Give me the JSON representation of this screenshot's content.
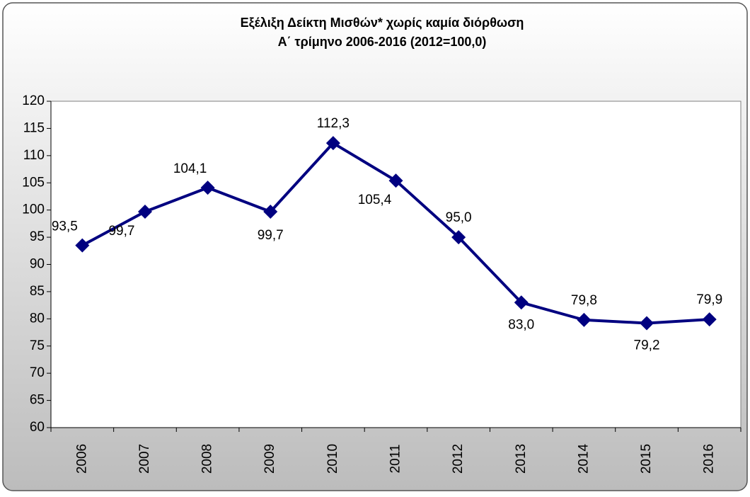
{
  "chart_data": {
    "type": "line",
    "title": "Εξέλιξη Δείκτη Μισθών* χωρίς καμία διόρθωση",
    "subtitle": "Α΄ τρίμηνο 2006-2016 (2012=100,0)",
    "categories": [
      "2006",
      "2007",
      "2008",
      "2009",
      "2010",
      "2011",
      "2012",
      "2013",
      "2014",
      "2015",
      "2016"
    ],
    "values": [
      93.5,
      99.7,
      104.1,
      99.7,
      112.3,
      105.4,
      95.0,
      83.0,
      79.8,
      79.2,
      79.9
    ],
    "value_labels": [
      "93,5",
      "99,7",
      "104,1",
      "99,7",
      "112,3",
      "105,4",
      "95,0",
      "83,0",
      "79,8",
      "79,2",
      "79,9"
    ],
    "color": "#000080",
    "ylim": [
      60,
      120
    ],
    "yticks": [
      60,
      65,
      70,
      75,
      80,
      85,
      90,
      95,
      100,
      105,
      110,
      115,
      120
    ],
    "grid": false
  }
}
